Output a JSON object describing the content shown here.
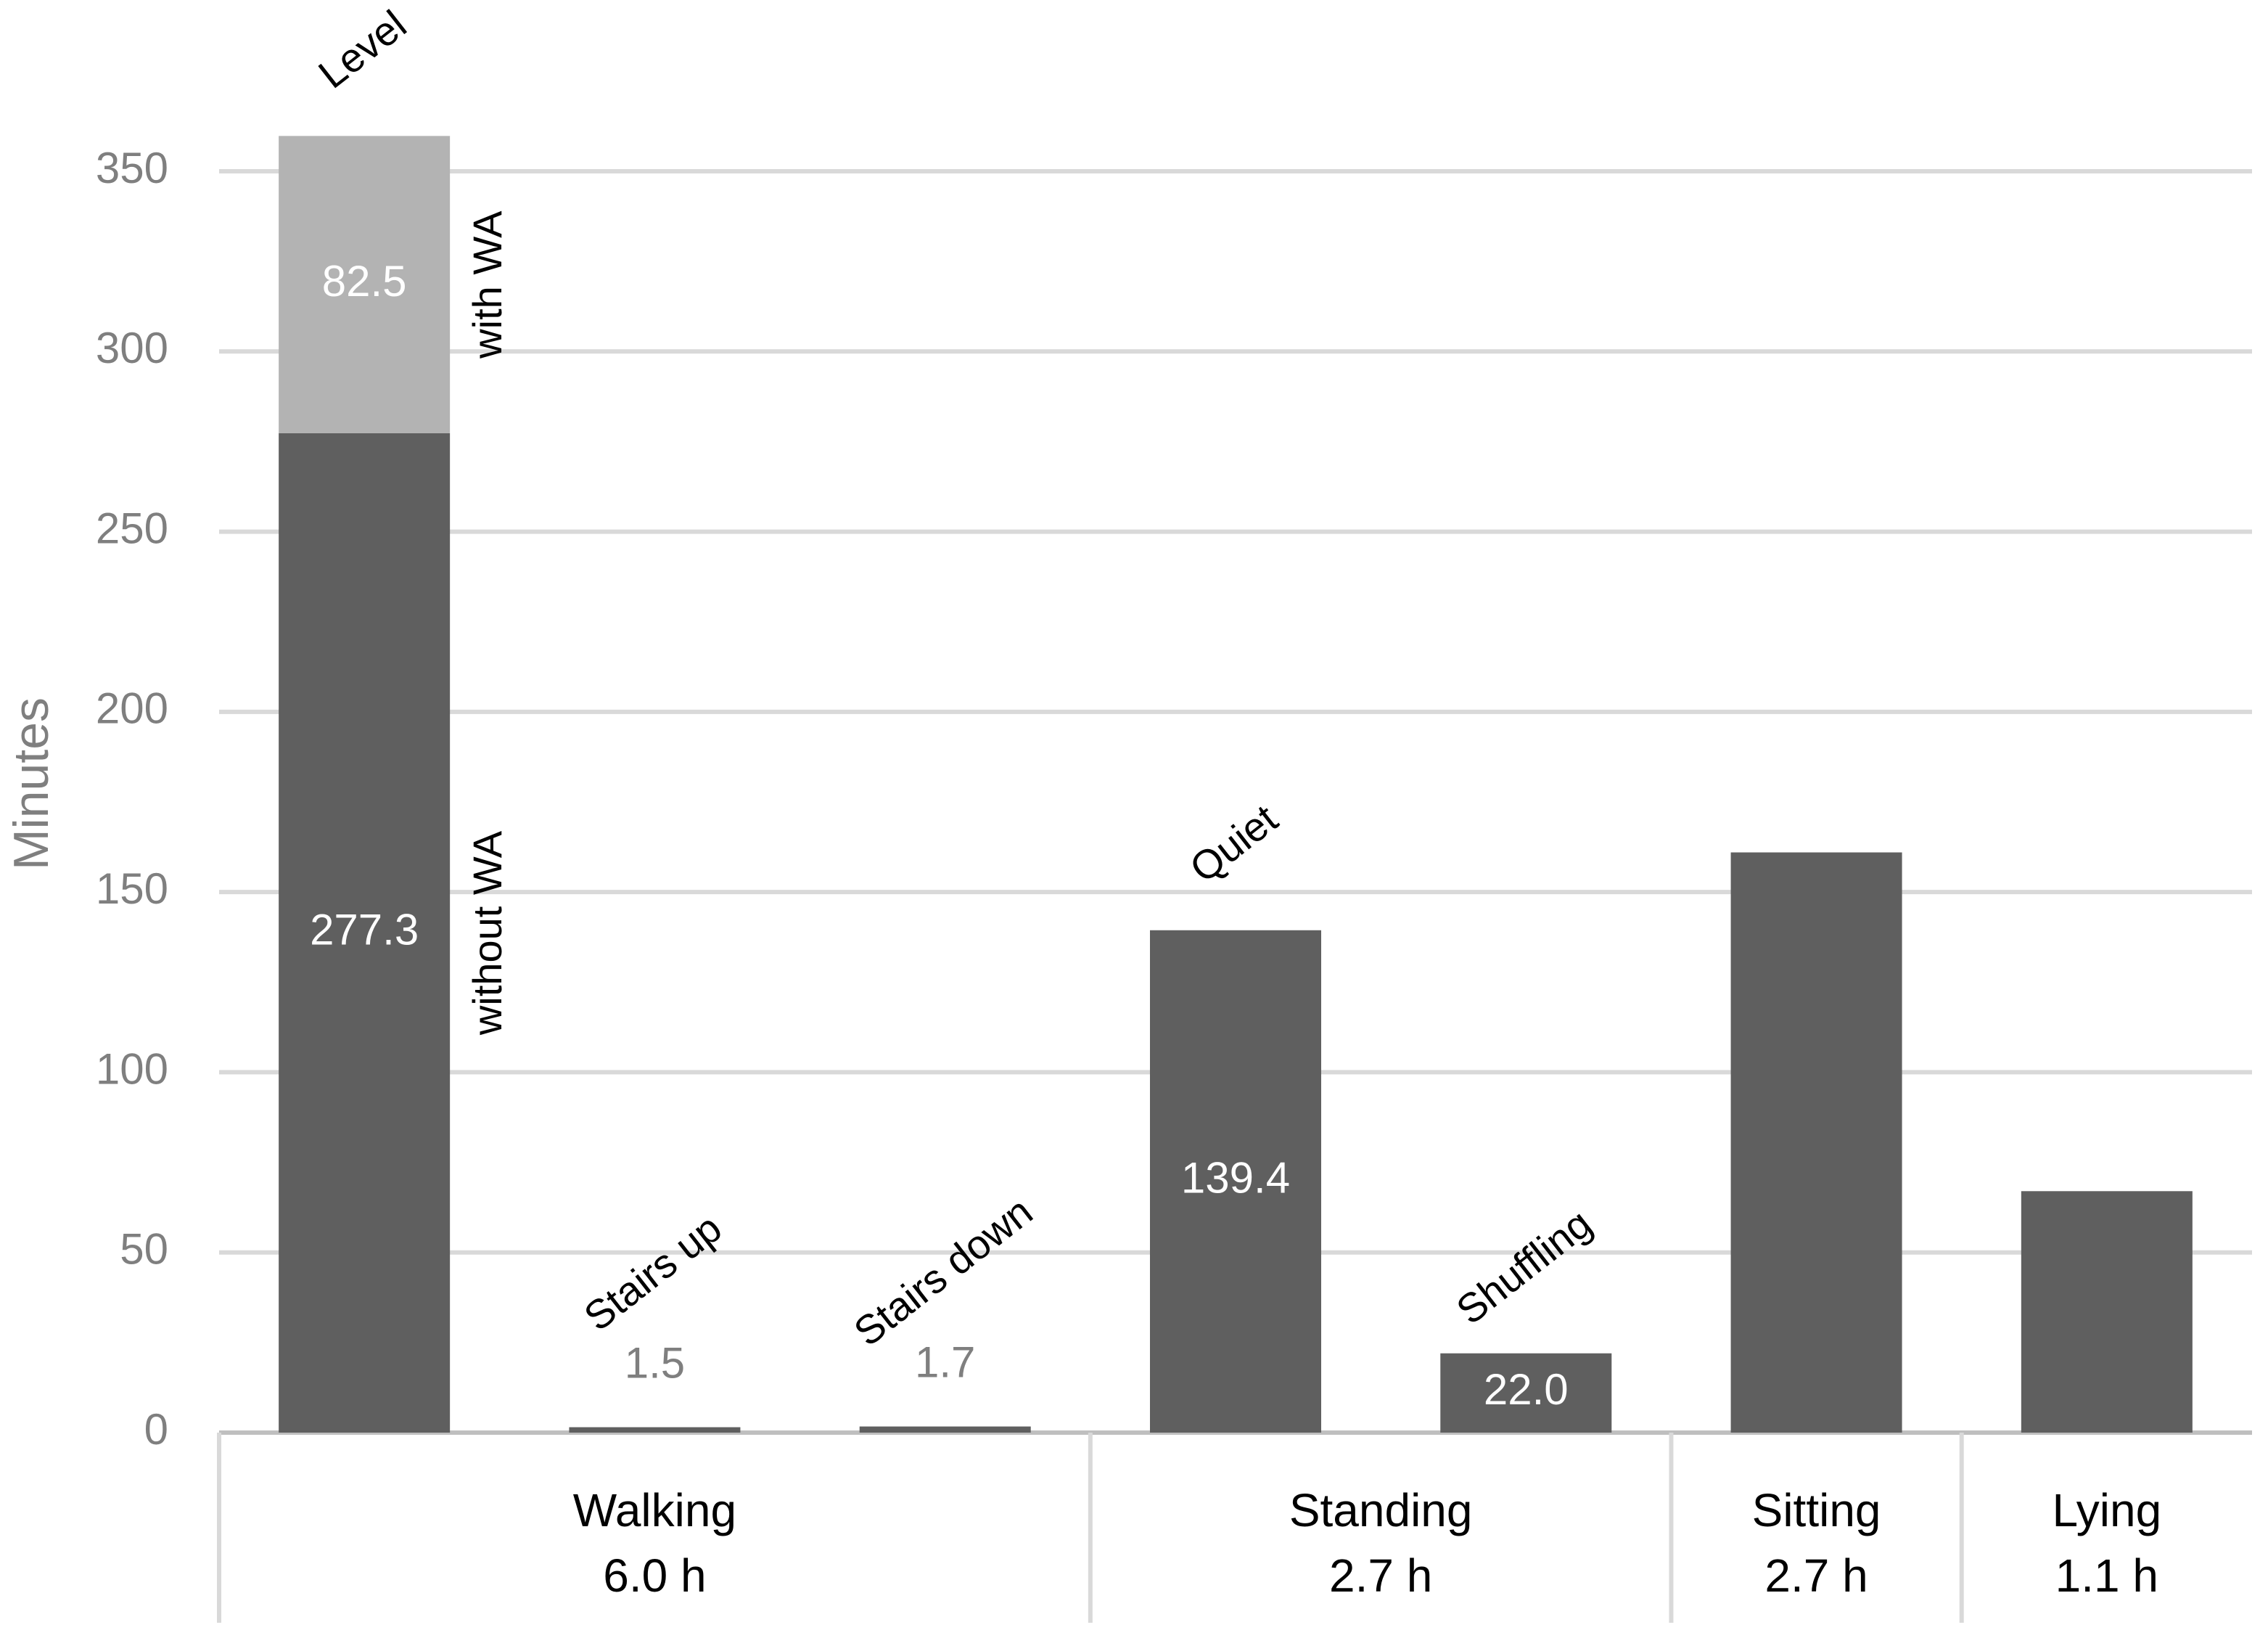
{
  "chart_data": {
    "type": "bar",
    "stacked": true,
    "y_label": "Minutes",
    "groups": [
      {
        "name": "Walking",
        "duration": "6.0 h",
        "categories": [
          "Level",
          "Stairs up",
          "Stairs down"
        ]
      },
      {
        "name": "Standing",
        "duration": "2.7 h",
        "categories": [
          "Quiet",
          "Shuffling"
        ]
      },
      {
        "name": "Sitting",
        "duration": "2.7 h",
        "categories": [
          null
        ]
      },
      {
        "name": "Lying",
        "duration": "1.1 h",
        "categories": [
          null
        ]
      }
    ],
    "series": [
      {
        "name": "without WA",
        "color": "#5f5f5f",
        "values": [
          277.3,
          1.5,
          1.7,
          139.4,
          22.0,
          161,
          67
        ],
        "value_labels": [
          "277.3",
          "1.5",
          "1.7",
          "139.4",
          "22.0",
          null,
          null
        ]
      },
      {
        "name": "with WA",
        "color": "#b3b3b3",
        "values": [
          82.5,
          null,
          null,
          null,
          null,
          null,
          null
        ],
        "value_labels": [
          "82.5",
          null,
          null,
          null,
          null,
          null,
          null
        ]
      }
    ],
    "ylim": [
      0,
      350
    ],
    "yticks": [
      0,
      50,
      100,
      150,
      200,
      250,
      300,
      350
    ],
    "grid": true
  }
}
